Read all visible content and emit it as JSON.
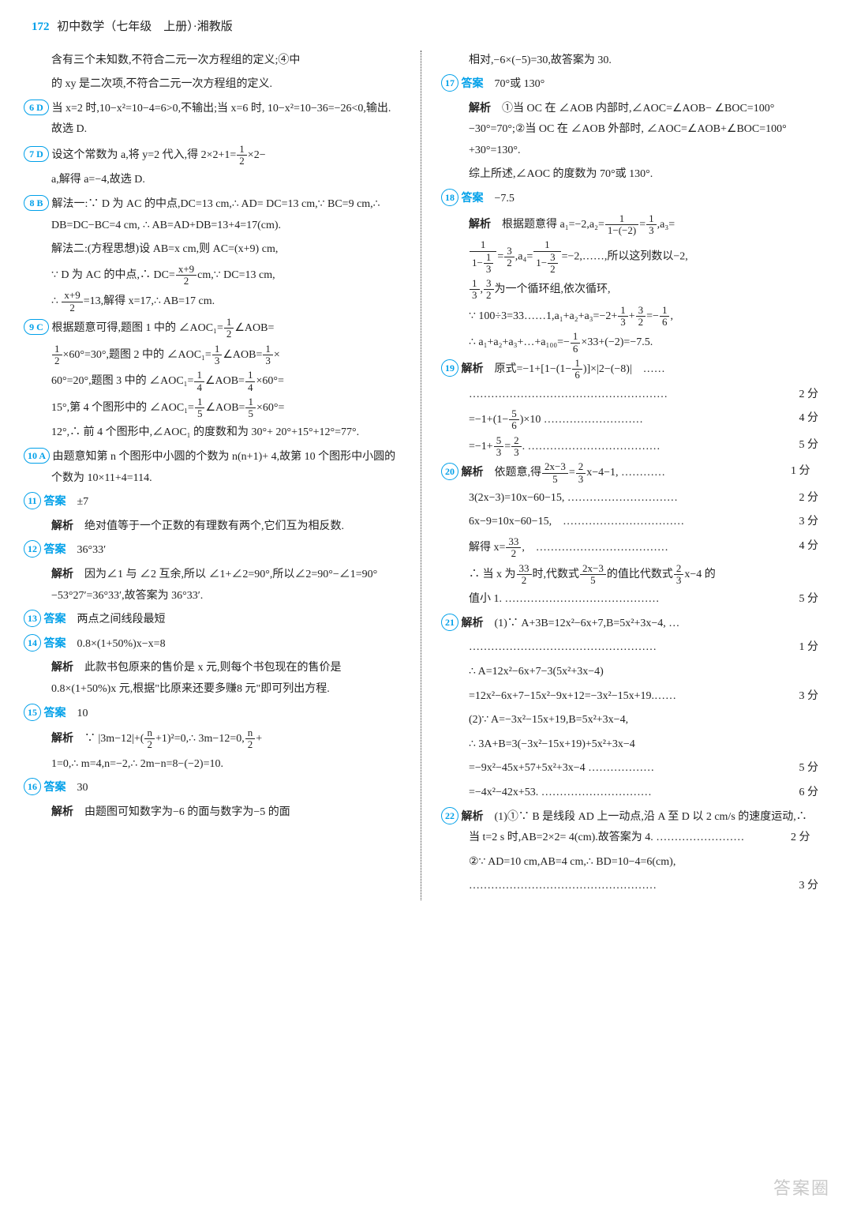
{
  "header": {
    "page_num": "172",
    "title": "初中数学（七年级　上册）·湘教版"
  },
  "left": {
    "intro1": "含有三个未知数,不符合二元一次方程组的定义;④中",
    "intro2": "的 xy 是二次项,不符合二元一次方程组的定义.",
    "q6_num": "6 D",
    "q6": "当 x=2 时,10−x²=10−4=6>0,不输出;当 x=6 时, 10−x²=10−36=−26<0,输出.故选 D.",
    "q7_num": "7 D",
    "q7a": "设这个常数为 a,将 y=2 代入,得 2×2+1=",
    "q7b": "×2−",
    "q7c": "a,解得 a=−4,故选 D.",
    "q8_num": "8 B",
    "q8a": "解法一:∵ D 为 AC 的中点,DC=13 cm,∴ AD= DC=13 cm,∵ BC=9 cm,∴ DB=DC−BC=4 cm, ∴ AB=AD+DB=13+4=17(cm).",
    "q8b": "解法二:(方程思想)设 AB=x cm,则 AC=(x+9) cm,",
    "q8c": "∵ D 为 AC 的中点,∴ DC=",
    "q8d": "cm,∵ DC=13 cm,",
    "q8e": "∴ ",
    "q8f": "=13,解得 x=17,∴ AB=17 cm.",
    "q9_num": "9 C",
    "q9a": "根据题意可得,题图 1 中的 ∠AOC₁=",
    "q9b": "∠AOB=",
    "q9c": "×60°=30°,题图 2 中的 ∠AOC₁=",
    "q9d": "∠AOB=",
    "q9e": "×",
    "q9f": "60°=20°,题图 3 中的 ∠AOC₁=",
    "q9g": "∠AOB=",
    "q9h": "×60°=",
    "q9i": "15°,第 4 个图形中的 ∠AOC₁=",
    "q9j": "∠AOB=",
    "q9k": "×60°=",
    "q9l": "12°,∴ 前 4 个图形中,∠AOC₁ 的度数和为 30°+ 20°+15°+12°=77°.",
    "q10_num": "10 A",
    "q10": "由题意知第 n 个图形中小圆的个数为 n(n+1)+ 4,故第 10 个图形中小圆的个数为 10×11+4=114.",
    "q11_num": "11",
    "q11_ans_label": "答案",
    "q11_ans": "±7",
    "q11_exp_label": "解析",
    "q11_exp": "绝对值等于一个正数的有理数有两个,它们互为相反数.",
    "q12_num": "12",
    "q12_ans_label": "答案",
    "q12_ans": "36°33′",
    "q12_exp_label": "解析",
    "q12_exp": "因为∠1 与 ∠2 互余,所以 ∠1+∠2=90°,所以∠2=90°−∠1=90°−53°27′=36°33′,故答案为 36°33′.",
    "q13_num": "13",
    "q13_ans_label": "答案",
    "q13_ans": "两点之间线段最短",
    "q14_num": "14",
    "q14_ans_label": "答案",
    "q14_ans": "0.8×(1+50%)x−x=8",
    "q14_exp_label": "解析",
    "q14_exp": "此款书包原来的售价是 x 元,则每个书包现在的售价是 0.8×(1+50%)x 元,根据\"比原来还要多赚8 元\"即可列出方程.",
    "q15_num": "15",
    "q15_ans_label": "答案",
    "q15_ans": "10",
    "q15_exp_label": "解析",
    "q15a": "∵ |3m−12|+",
    "q15b": "=0,∴ 3m−12=0,",
    "q15c": "+",
    "q15d": "1=0,∴ m=4,n=−2,∴ 2m−n=8−(−2)=10.",
    "q16_num": "16",
    "q16_ans_label": "答案",
    "q16_ans": "30",
    "q16_exp_label": "解析",
    "q16_exp": "由题图可知数字为−6 的面与数字为−5 的面"
  },
  "right": {
    "cont": "相对,−6×(−5)=30,故答案为 30.",
    "q17_num": "17",
    "q17_ans_label": "答案",
    "q17_ans": "70°或 130°",
    "q17_exp_label": "解析",
    "q17_exp": "①当 OC 在 ∠AOB 内部时,∠AOC=∠AOB− ∠BOC=100°−30°=70°;②当 OC 在 ∠AOB 外部时, ∠AOC=∠AOB+∠BOC=100°+30°=130°.",
    "q17_exp2": "综上所述,∠AOC 的度数为 70°或 130°.",
    "q18_num": "18",
    "q18_ans_label": "答案",
    "q18_ans": "−7.5",
    "q18_exp_label": "解析",
    "q18a": "根据题意得 a₁=−2,a₂=",
    "q18b": "=",
    "q18c": ",a₃=",
    "q18d": "=",
    "q18e": ",a₄=",
    "q18f": "=−2,……,所以这列数以−2,",
    "q18g": ",",
    "q18h": "为一个循环组,依次循环,",
    "q18i": "∵ 100÷3=33……1,a₁+a₂+a₃=−2+",
    "q18j": "+",
    "q18k": "=−",
    "q18l": ",",
    "q18m": "∴ a₁+a₂+a₃+…+a₁₀₀=−",
    "q18n": "×33+(−2)=−7.5.",
    "q19_num": "19",
    "q19_exp_label": "解析",
    "q19a": "原式=−1+",
    "q19b": "×|2−(−8)|",
    "q19c": "……",
    "q19d": "2 分",
    "q19e": "=−1+",
    "q19f": "×10",
    "q19g": "4 分",
    "q19h": "=−1+",
    "q19i": "=",
    "q19j": ".",
    "q19k": "5 分",
    "q20_num": "20",
    "q20_exp_label": "解析",
    "q20a": "依题意,得",
    "q20b": "=",
    "q20c": "x−4−1,",
    "q20d": "1 分",
    "q20e": "3(2x−3)=10x−60−15,",
    "q20f": "2 分",
    "q20g": "6x−9=10x−60−15,",
    "q20h": "3 分",
    "q20i": "解得 x=",
    "q20j": ",",
    "q20k": "4 分",
    "q20l": "∴ 当 x 为",
    "q20m": "时,代数式",
    "q20n": "的值比代数式",
    "q20o": "x−4 的",
    "q20p": "值小 1.",
    "q20q": "5 分",
    "q21_num": "21",
    "q21_exp_label": "解析",
    "q21a": "(1)∵ A+3B=12x²−6x+7,B=5x²+3x−4, …",
    "q21b": "1 分",
    "q21c": "∴ A=12x²−6x+7−3(5x²+3x−4)",
    "q21d": "=12x²−6x+7−15x²−9x+12=−3x²−15x+19.",
    "q21e": "3 分",
    "q21f": "(2)∵ A=−3x²−15x+19,B=5x²+3x−4,",
    "q21g": "∴ 3A+B=3(−3x²−15x+19)+5x²+3x−4",
    "q21h": "=−9x²−45x+57+5x²+3x−4",
    "q21i": "5 分",
    "q21j": "=−4x²−42x+53.",
    "q21k": "6 分",
    "q22_num": "22",
    "q22_exp_label": "解析",
    "q22a": "(1)①∵ B 是线段 AD 上一动点,沿 A 至 D 以 2 cm/s 的速度运动,∴ 当 t=2 s 时,AB=2×2= 4(cm).故答案为 4.",
    "q22b": "2 分",
    "q22c": "②∵ AD=10 cm,AB=4 cm,∴ BD=10−4=6(cm),",
    "q22d": "3 分"
  },
  "watermark": "答案圈"
}
